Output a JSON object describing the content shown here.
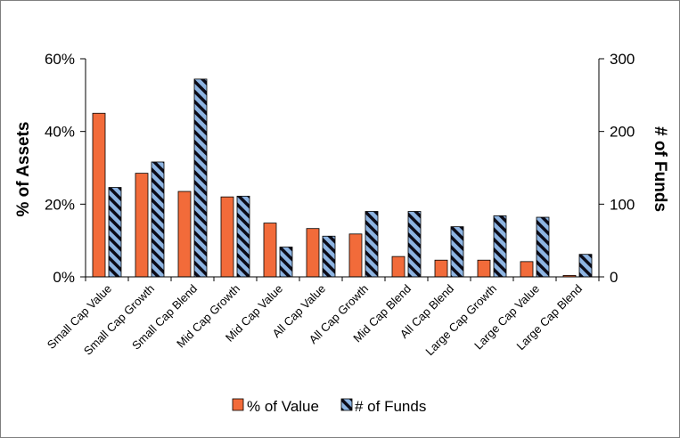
{
  "chart_data": {
    "type": "bar",
    "categories": [
      "Small Cap Value",
      "Small Cap Growth",
      "Small Cap Blend",
      "Mid Cap Growth",
      "Mid Cap Value",
      "All Cap Value",
      "All Cap Growth",
      "Mid Cap Blend",
      "All Cap Blend",
      "Large Cap Growth",
      "Large Cap Value",
      "Large Cap Blend"
    ],
    "series": [
      {
        "name": "% of Value",
        "axis": "left",
        "color": "#f26b3a",
        "pattern": "solid",
        "values": [
          0.45,
          0.285,
          0.235,
          0.22,
          0.148,
          0.133,
          0.118,
          0.056,
          0.046,
          0.046,
          0.042,
          0.004
        ]
      },
      {
        "name": "# of Funds",
        "axis": "right",
        "color": "#8db4e2",
        "pattern": "diagonal-stripes-black",
        "values": [
          123,
          158,
          272,
          111,
          41,
          56,
          90,
          90,
          69,
          84,
          82,
          31
        ]
      }
    ],
    "y_left": {
      "label": "% of Assets",
      "ylim": [
        0,
        0.6
      ],
      "ticks": [
        0,
        0.2,
        0.4,
        0.6
      ],
      "tick_labels": [
        "0%",
        "20%",
        "40%",
        "60%"
      ]
    },
    "y_right": {
      "label": "# of Funds",
      "ylim": [
        0,
        300
      ],
      "ticks": [
        0,
        100,
        200,
        300
      ],
      "tick_labels": [
        "0",
        "100",
        "200",
        "300"
      ]
    },
    "grid": false,
    "legend": {
      "position": "bottom",
      "entries": [
        "% of Value",
        "# of Funds"
      ]
    }
  }
}
